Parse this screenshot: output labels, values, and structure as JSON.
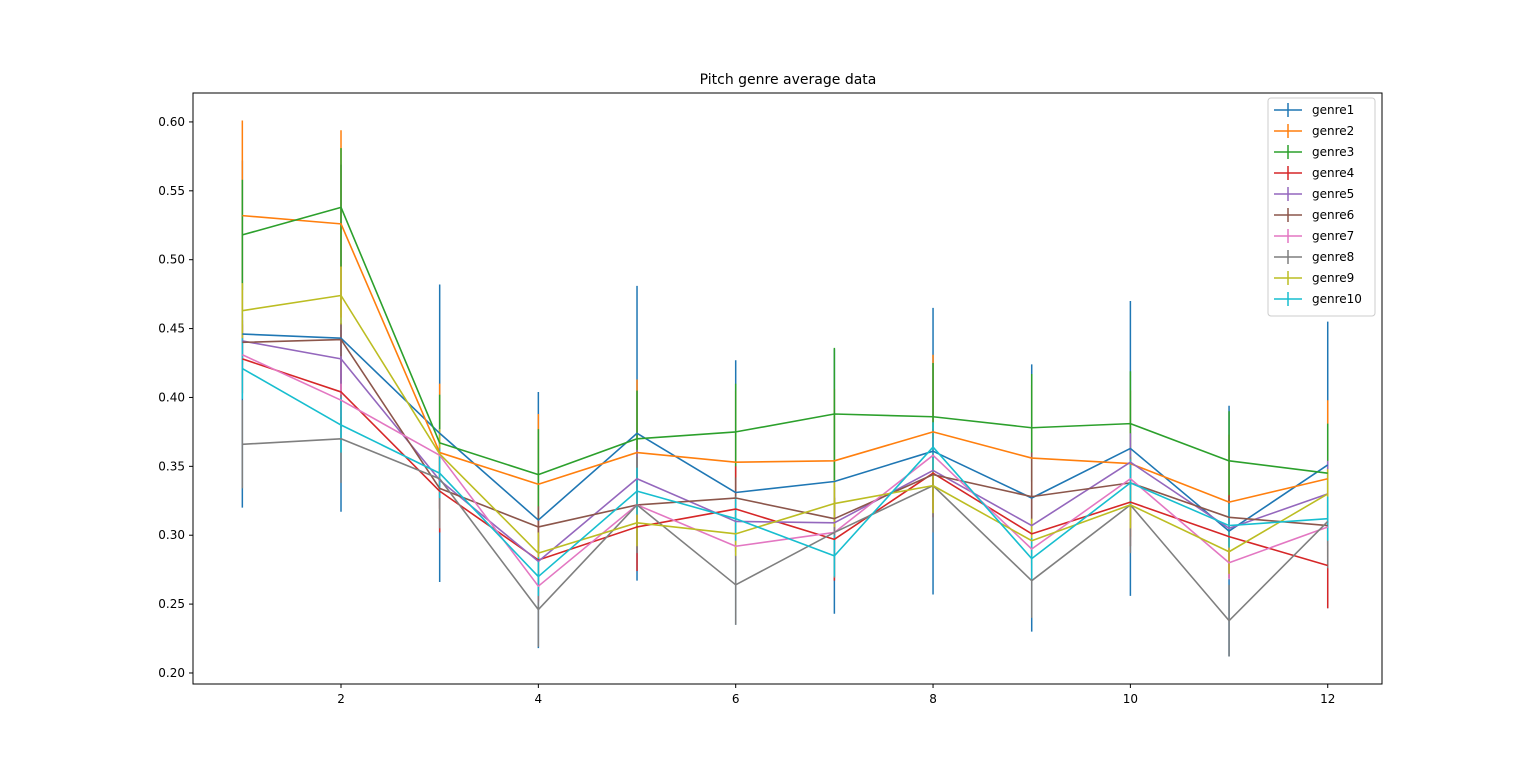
{
  "chart_data": {
    "type": "line",
    "title": "Pitch genre average data",
    "xlabel": "",
    "ylabel": "",
    "xlim": [
      0.5,
      12.55
    ],
    "ylim": [
      0.192,
      0.621
    ],
    "x_ticks": [
      "2",
      "4",
      "6",
      "8",
      "10",
      "12"
    ],
    "y_ticks": [
      "0.20",
      "0.25",
      "0.30",
      "0.35",
      "0.40",
      "0.45",
      "0.50",
      "0.55",
      "0.60"
    ],
    "legend_position": "top-right",
    "grid": false,
    "error_bars": true,
    "x": [
      1,
      2,
      3,
      4,
      5,
      6,
      7,
      8,
      9,
      10,
      11,
      12
    ],
    "series": [
      {
        "name": "genre1",
        "color": "#1f77b4",
        "values": [
          0.446,
          0.443,
          0.374,
          0.311,
          0.374,
          0.331,
          0.339,
          0.361,
          0.327,
          0.363,
          0.303,
          0.351
        ],
        "errors": [
          0.126,
          0.126,
          0.108,
          0.093,
          0.107,
          0.096,
          0.096,
          0.104,
          0.097,
          0.107,
          0.091,
          0.104
        ]
      },
      {
        "name": "genre2",
        "color": "#ff7f0e",
        "values": [
          0.532,
          0.526,
          0.36,
          0.337,
          0.36,
          0.353,
          0.354,
          0.375,
          0.356,
          0.352,
          0.324,
          0.341
        ],
        "errors": [
          0.069,
          0.068,
          0.05,
          0.051,
          0.053,
          0.052,
          0.052,
          0.056,
          0.053,
          0.053,
          0.049,
          0.057
        ]
      },
      {
        "name": "genre3",
        "color": "#2ca02c",
        "values": [
          0.518,
          0.538,
          0.367,
          0.344,
          0.37,
          0.375,
          0.388,
          0.386,
          0.378,
          0.381,
          0.354,
          0.345
        ],
        "errors": [
          0.04,
          0.043,
          0.035,
          0.033,
          0.035,
          0.035,
          0.048,
          0.039,
          0.039,
          0.038,
          0.036,
          0.036
        ]
      },
      {
        "name": "genre4",
        "color": "#d62728",
        "values": [
          0.428,
          0.404,
          0.332,
          0.282,
          0.306,
          0.319,
          0.297,
          0.345,
          0.301,
          0.324,
          0.299,
          0.278
        ],
        "errors": [
          0.025,
          0.026,
          0.03,
          0.03,
          0.032,
          0.031,
          0.03,
          0.032,
          0.031,
          0.032,
          0.03,
          0.031
        ]
      },
      {
        "name": "genre5",
        "color": "#9467bd",
        "values": [
          0.441,
          0.428,
          0.34,
          0.281,
          0.341,
          0.31,
          0.309,
          0.347,
          0.307,
          0.353,
          0.305,
          0.33
        ],
        "errors": [
          0.02,
          0.021,
          0.02,
          0.019,
          0.021,
          0.019,
          0.019,
          0.021,
          0.019,
          0.021,
          0.019,
          0.024
        ]
      },
      {
        "name": "genre6",
        "color": "#8c564b",
        "values": [
          0.44,
          0.442,
          0.334,
          0.306,
          0.322,
          0.327,
          0.312,
          0.344,
          0.328,
          0.338,
          0.313,
          0.307
        ],
        "errors": [
          0.016,
          0.012,
          0.015,
          0.015,
          0.015,
          0.015,
          0.015,
          0.016,
          0.032,
          0.015,
          0.015,
          0.015
        ]
      },
      {
        "name": "genre7",
        "color": "#e377c2",
        "values": [
          0.431,
          0.398,
          0.358,
          0.263,
          0.322,
          0.292,
          0.302,
          0.358,
          0.29,
          0.341,
          0.28,
          0.306
        ],
        "errors": [
          0.012,
          0.012,
          0.012,
          0.012,
          0.012,
          0.012,
          0.012,
          0.012,
          0.012,
          0.012,
          0.012,
          0.012
        ]
      },
      {
        "name": "genre8",
        "color": "#7f7f7f",
        "values": [
          0.366,
          0.37,
          0.341,
          0.246,
          0.322,
          0.264,
          0.302,
          0.336,
          0.267,
          0.322,
          0.238,
          0.31
        ],
        "errors": [
          0.032,
          0.032,
          0.036,
          0.027,
          0.035,
          0.029,
          0.033,
          0.034,
          0.027,
          0.035,
          0.026,
          0.034
        ]
      },
      {
        "name": "genre9",
        "color": "#bcbd22",
        "values": [
          0.463,
          0.474,
          0.359,
          0.287,
          0.309,
          0.301,
          0.323,
          0.336,
          0.296,
          0.322,
          0.288,
          0.33
        ],
        "errors": [
          0.02,
          0.021,
          0.018,
          0.015,
          0.017,
          0.016,
          0.017,
          0.02,
          0.016,
          0.017,
          0.016,
          0.018
        ]
      },
      {
        "name": "genre10",
        "color": "#17becf",
        "values": [
          0.421,
          0.38,
          0.345,
          0.27,
          0.332,
          0.312,
          0.285,
          0.364,
          0.283,
          0.338,
          0.307,
          0.312
        ],
        "errors": [
          0.022,
          0.02,
          0.018,
          0.014,
          0.017,
          0.016,
          0.015,
          0.018,
          0.015,
          0.017,
          0.016,
          0.016
        ]
      }
    ]
  }
}
